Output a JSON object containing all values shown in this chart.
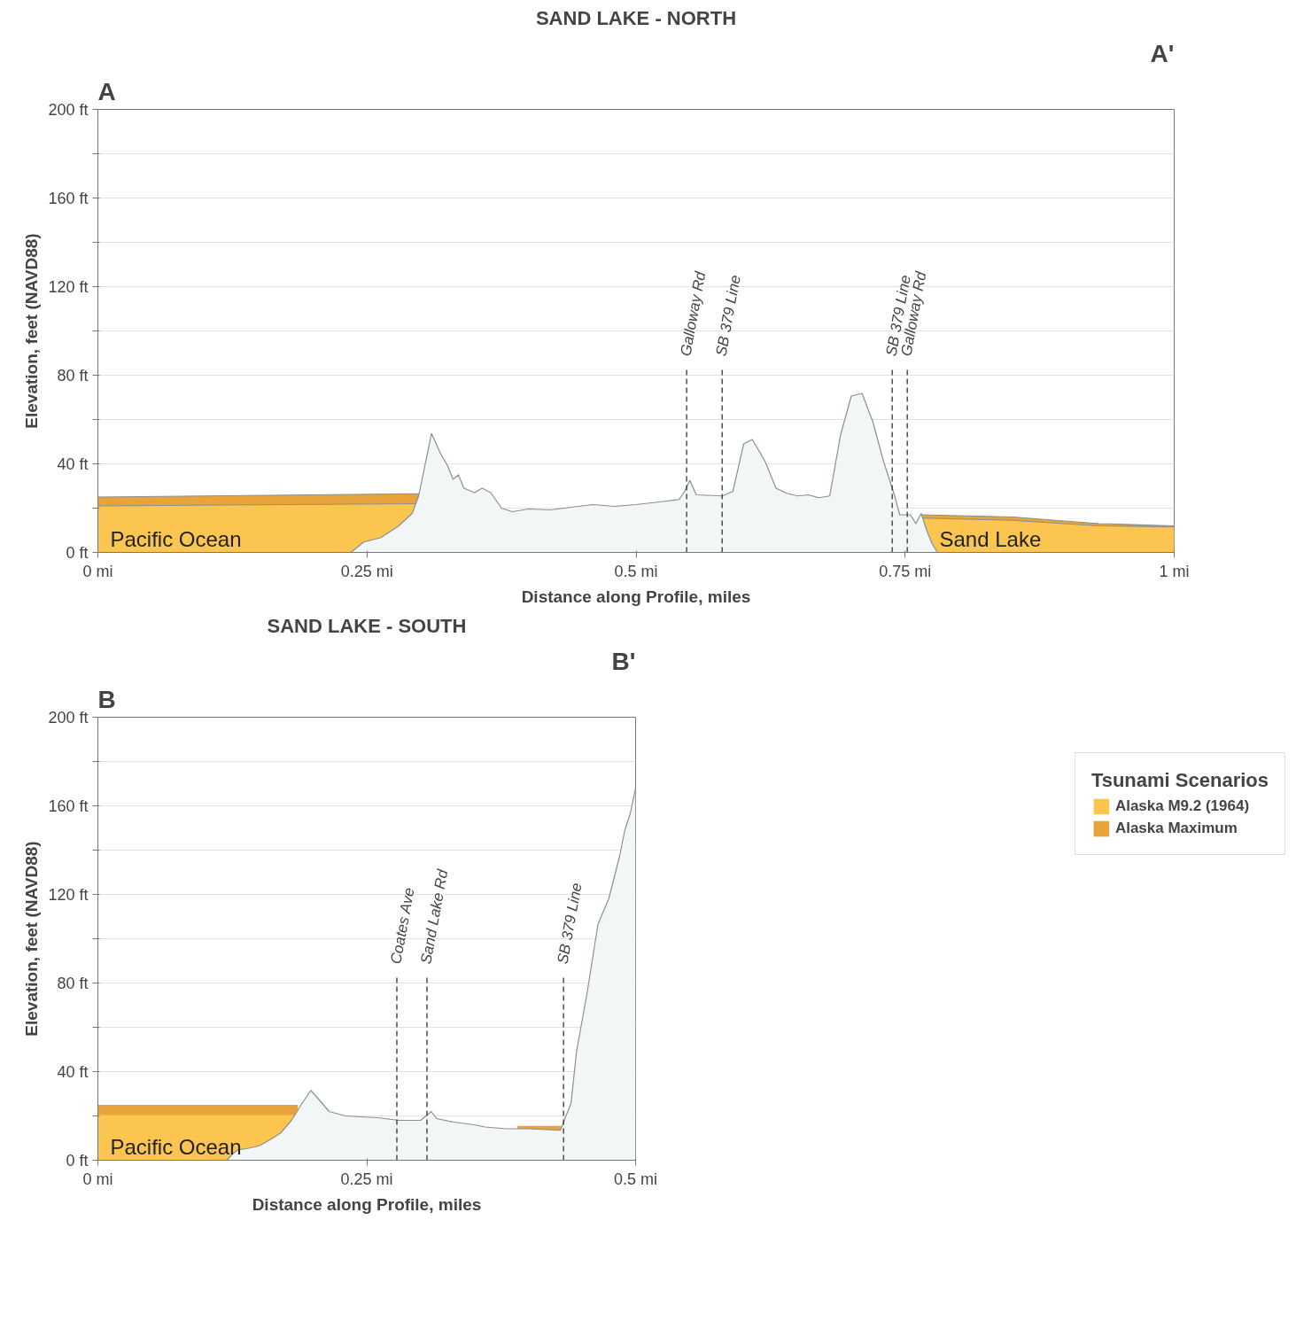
{
  "chart_data": [
    {
      "type": "area",
      "title": "SAND LAKE - NORTH",
      "xlabel": "Distance along Profile, miles",
      "ylabel": "Elevation, feet (NAVD88)",
      "xlim": [
        0,
        1
      ],
      "xticks": [
        {
          "value": 0,
          "label": "0 mi"
        },
        {
          "value": 0.25,
          "label": "0.25 mi"
        },
        {
          "value": 0.5,
          "label": "0.5 mi"
        },
        {
          "value": 0.75,
          "label": "0.75 mi"
        },
        {
          "value": 1,
          "label": "1 mi"
        }
      ],
      "ylim": [
        0,
        200
      ],
      "yticks": [
        {
          "value": 0,
          "label": "0 ft"
        },
        {
          "value": 20,
          "label": null
        },
        {
          "value": 40,
          "label": "40 ft"
        },
        {
          "value": 60,
          "label": null
        },
        {
          "value": 80,
          "label": "80 ft"
        },
        {
          "value": 100,
          "label": null
        },
        {
          "value": 120,
          "label": "120 ft"
        },
        {
          "value": 140,
          "label": null
        },
        {
          "value": 160,
          "label": "160 ft"
        },
        {
          "value": 180,
          "label": null
        },
        {
          "value": 200,
          "label": "200 ft"
        }
      ],
      "grid": "y",
      "legend": false,
      "series": [
        {
          "color": "#e8a33a",
          "x": [
            0,
            0.3,
            null,
            0.765,
            0.85,
            0.93,
            1
          ],
          "values": [
            25,
            26.5,
            null,
            17,
            16,
            13,
            12
          ]
        },
        {
          "color": "#fbc54f",
          "x": [
            0,
            0.3,
            null,
            0.765,
            0.85,
            0.93,
            1
          ],
          "values": [
            21,
            22,
            null,
            15.5,
            14.5,
            12,
            11.5
          ]
        },
        {
          "color": "#f2f6f6",
          "x": [
            0,
            0.235,
            0.247,
            0.263,
            0.279,
            0.292,
            0.298,
            0.31,
            0.318,
            0.325,
            0.33,
            0.335,
            0.34,
            0.35,
            0.357,
            0.365,
            0.375,
            0.385,
            0.4,
            0.42,
            0.44,
            0.46,
            0.48,
            0.5,
            0.52,
            0.54,
            0.545,
            0.55,
            0.556,
            0.58,
            0.59,
            0.6,
            0.608,
            0.62,
            0.63,
            0.64,
            0.65,
            0.66,
            0.67,
            0.68,
            0.69,
            0.7,
            0.71,
            0.72,
            0.73,
            0.74,
            0.745,
            0.755,
            0.76,
            0.765,
            0.77,
            0.775,
            0.78,
            1
          ],
          "values": [
            0,
            0,
            4.7,
            6.7,
            11.8,
            17.6,
            25.5,
            53.7,
            45,
            39,
            33,
            35,
            29,
            27,
            29,
            27,
            20,
            18.4,
            19.6,
            19.2,
            20.4,
            21.6,
            20.8,
            21.6,
            22.7,
            23.9,
            27.5,
            32.5,
            26,
            25.5,
            27.5,
            49,
            51,
            41,
            29,
            26.7,
            25.5,
            26,
            24.7,
            25.5,
            53,
            70.6,
            71.8,
            59,
            41,
            26,
            17,
            17,
            13,
            17.6,
            10,
            4,
            0,
            0
          ]
        }
      ],
      "ref_lines": [
        {
          "axis": "x",
          "value": 0.547,
          "label": "Galloway Rd",
          "line_style": "dashed"
        },
        {
          "axis": "x",
          "value": 0.58,
          "label": "SB 379 Line",
          "line_style": "dashed"
        },
        {
          "axis": "x",
          "value": 0.738,
          "label": "SB 379 Line",
          "line_style": "dashed"
        },
        {
          "axis": "x",
          "value": 0.752,
          "label": "Galloway Rd",
          "line_style": "dashed"
        }
      ],
      "annotations": [
        "A",
        "A'",
        "Pacific Ocean",
        "Sand Lake"
      ]
    },
    {
      "type": "area",
      "title": "SAND LAKE - SOUTH",
      "xlabel": "Distance along Profile, miles",
      "ylabel": "Elevation, feet (NAVD88)",
      "legend_title": "Tsunami Scenarios",
      "xlim": [
        0,
        0.5
      ],
      "xticks": [
        {
          "value": 0,
          "label": "0 mi"
        },
        {
          "value": 0.25,
          "label": "0.25 mi"
        },
        {
          "value": 0.5,
          "label": "0.5 mi"
        }
      ],
      "ylim": [
        0,
        200
      ],
      "yticks": [
        {
          "value": 0,
          "label": "0 ft"
        },
        {
          "value": 20,
          "label": null
        },
        {
          "value": 40,
          "label": "40 ft"
        },
        {
          "value": 60,
          "label": null
        },
        {
          "value": 80,
          "label": "80 ft"
        },
        {
          "value": 100,
          "label": null
        },
        {
          "value": 120,
          "label": "120 ft"
        },
        {
          "value": 140,
          "label": null
        },
        {
          "value": 160,
          "label": "160 ft"
        },
        {
          "value": 180,
          "label": null
        },
        {
          "value": 200,
          "label": "200 ft"
        }
      ],
      "grid": "y",
      "legend": "right",
      "series": [
        {
          "name": "Alaska Maximum",
          "color": "#e8a33a",
          "x": [
            0,
            0.186,
            null,
            0.39,
            0.431
          ],
          "values": [
            25,
            25,
            null,
            15.5,
            15.5
          ]
        },
        {
          "name": "Alaska M9.2 (1964)",
          "color": "#fbc54f",
          "x": [
            0,
            0.182
          ],
          "values": [
            20.4,
            20.4
          ]
        },
        {
          "color": "#f2f6f6",
          "x": [
            0,
            0.12,
            0.125,
            0.13,
            0.14,
            0.15,
            0.16,
            0.17,
            0.18,
            0.19,
            0.198,
            0.205,
            0.215,
            0.23,
            0.26,
            0.28,
            0.3,
            0.31,
            0.315,
            0.33,
            0.35,
            0.36,
            0.38,
            0.4,
            0.43,
            0.44,
            0.445,
            0.455,
            0.465,
            0.475,
            0.485,
            0.49,
            0.495,
            0.5
          ],
          "values": [
            0,
            0,
            2.7,
            4.6,
            5.4,
            6.5,
            9.2,
            12.3,
            18,
            25.8,
            31.5,
            27.7,
            22,
            20,
            19.2,
            18,
            18,
            22,
            18.8,
            17.3,
            16,
            15,
            14.2,
            14.2,
            13.5,
            25.8,
            48.8,
            75.8,
            106.5,
            118,
            137,
            149,
            156.5,
            168
          ]
        }
      ],
      "ref_lines": [
        {
          "axis": "x",
          "value": 0.278,
          "label": "Coates Ave",
          "line_style": "dashed"
        },
        {
          "axis": "x",
          "value": 0.306,
          "label": "Sand Lake Rd",
          "line_style": "dashed"
        },
        {
          "axis": "x",
          "value": 0.433,
          "label": "SB 379 Line",
          "line_style": "dashed"
        }
      ],
      "annotations": [
        "B",
        "B'",
        "Pacific Ocean"
      ]
    }
  ]
}
